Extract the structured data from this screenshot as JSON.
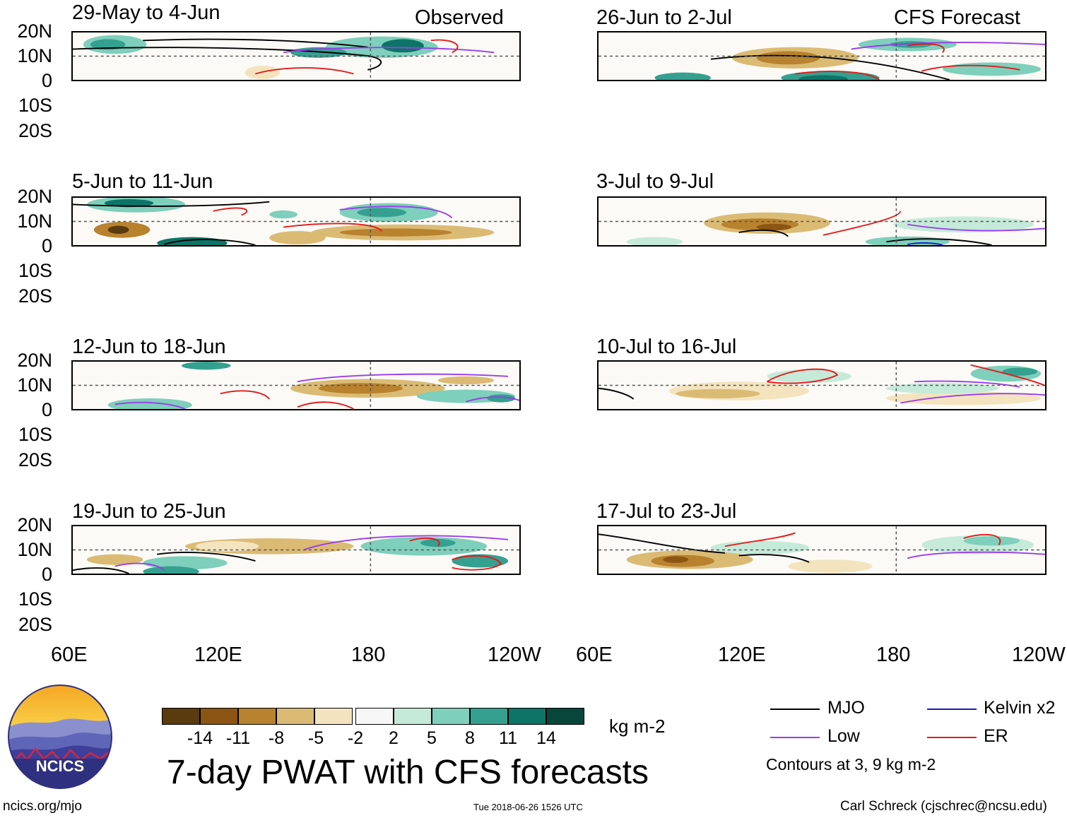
{
  "header": {
    "left_label": "Observed",
    "right_label": "CFS Forecast"
  },
  "panels": [
    {
      "title": "29-May to 4-Jun",
      "column": "observed"
    },
    {
      "title": "5-Jun to 11-Jun",
      "column": "observed"
    },
    {
      "title": "12-Jun to 18-Jun",
      "column": "observed"
    },
    {
      "title": "19-Jun to 25-Jun",
      "column": "observed"
    },
    {
      "title": "26-Jun to 2-Jul",
      "column": "forecast"
    },
    {
      "title": "3-Jul to 9-Jul",
      "column": "forecast"
    },
    {
      "title": "10-Jul to 16-Jul",
      "column": "forecast"
    },
    {
      "title": "17-Jul to 23-Jul",
      "column": "forecast"
    }
  ],
  "lat_labels": [
    "20N",
    "10N",
    "0",
    "10S",
    "20S"
  ],
  "lon_labels": [
    "60E",
    "120E",
    "180",
    "120W"
  ],
  "colorbar": {
    "colors": [
      "#5a3a0f",
      "#8c5513",
      "#b8822e",
      "#dbbb74",
      "#f3e4bf",
      "#f7f7f7",
      "#c5ead9",
      "#7ecfbb",
      "#35a090",
      "#0e7468",
      "#08463c"
    ],
    "tick_labels": [
      "-14",
      "-11",
      "-8",
      "-5",
      "-2",
      "2",
      "5",
      "8",
      "11",
      "14"
    ],
    "unit": "kg m-2"
  },
  "title": "7-day PWAT with CFS forecasts",
  "legend": {
    "items": [
      {
        "label": "MJO",
        "color": "#000000"
      },
      {
        "label": "Kelvin x2",
        "color": "#1a1acc"
      },
      {
        "label": "Low",
        "color": "#9a3ee8"
      },
      {
        "label": "ER",
        "color": "#e41a1a"
      }
    ],
    "note": "Contours at 3, 9 kg m-2"
  },
  "logo": {
    "text": "NCICS"
  },
  "footer": {
    "url": "ncics.org/mjo",
    "timestamp": "Tue 2018-06-26 1526 UTC",
    "credit": "Carl Schreck (cjschrec@ncsu.edu)"
  }
}
